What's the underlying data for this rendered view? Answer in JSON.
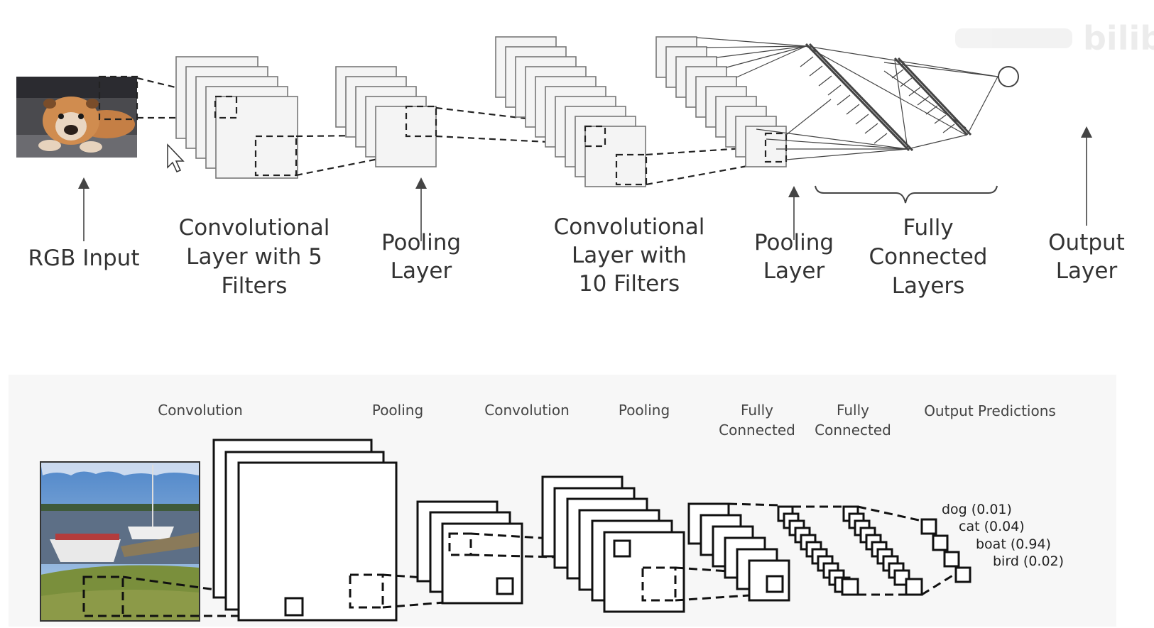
{
  "top_diagram": {
    "labels": {
      "rgb_input": "RGB Input",
      "conv1": [
        "Convolutional",
        "Layer with 5",
        "Filters"
      ],
      "pool1": [
        "Pooling",
        "Layer"
      ],
      "conv2": [
        "Convolutional",
        "Layer with",
        "10 Filters"
      ],
      "pool2": [
        "Pooling",
        "Layer"
      ],
      "fully_connected": [
        "Fully",
        "Connected",
        "Layers"
      ],
      "output": [
        "Output",
        "Layer"
      ]
    },
    "input_image": "bulldog-photo"
  },
  "bottom_diagram": {
    "labels": {
      "conv1": "Convolution",
      "pool1": "Pooling",
      "conv2": "Convolution",
      "pool2": "Pooling",
      "fc1": [
        "Fully",
        "Connected"
      ],
      "fc2": [
        "Fully",
        "Connected"
      ],
      "output": "Output Predictions"
    },
    "predictions": [
      "dog (0.01)",
      "cat (0.04)",
      "boat (0.94)",
      "bird (0.02)"
    ],
    "input_image": "boat-photo"
  },
  "watermark": "bilibili",
  "colors": {
    "ink": "#111111",
    "label_gray": "#333333",
    "fmap_fill": "#f4f4f4"
  }
}
